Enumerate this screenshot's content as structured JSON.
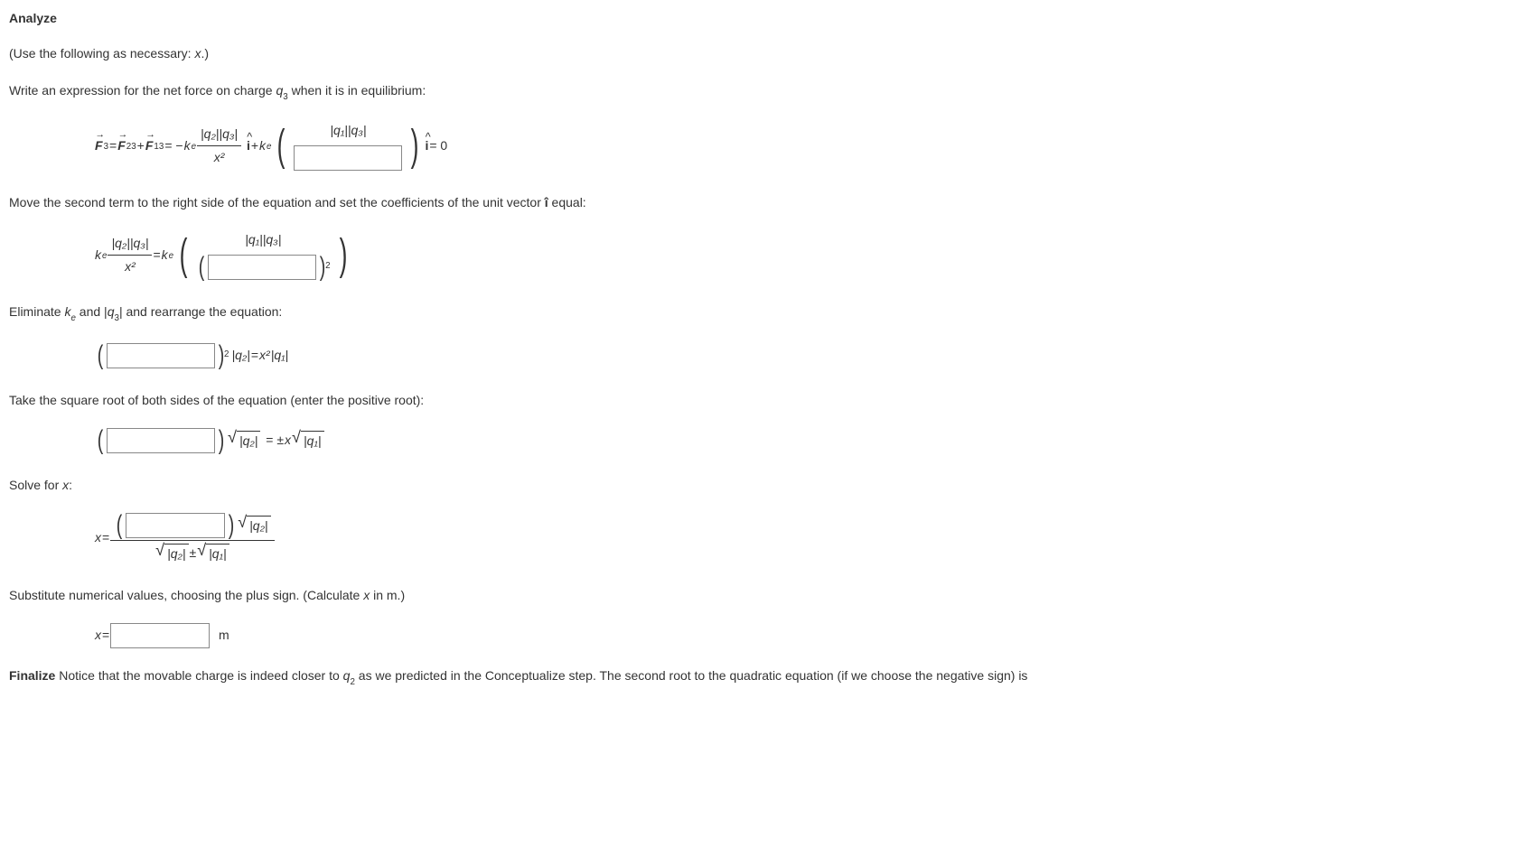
{
  "heading": "Analyze",
  "line1_pre": "(Use the following as necessary: ",
  "line1_var": "x",
  "line1_post": ".)",
  "line2_pre": "Write an expression for the net force on charge ",
  "line2_q": "q",
  "line2_sub": "3",
  "line2_post": " when it is in equilibrium:",
  "eq1": {
    "F": "F",
    "sub3": "3",
    "eq": " = ",
    "sub23": "23",
    "plus": " + ",
    "sub13": "13",
    "neg_ke": " = −",
    "k": "k",
    "e": "e",
    "num1": "|q₂||q₃|",
    "den1": "x²",
    "ihat": "i",
    "plus_ke": " + ",
    "num2": "|q₁||q₃|",
    "eq_zero": " = 0"
  },
  "line3_pre": "Move the second term to the right side of the equation and set the coefficients of the unit vector ",
  "line3_ihat": "î",
  "line3_post": " equal:",
  "eq2": {
    "k": "k",
    "e": "e",
    "num1": "|q₂||q₃|",
    "den1": "x²",
    "eq": " = ",
    "num2": "|q₁||q₃|",
    "sq_exp": "2"
  },
  "line4_pre": "Eliminate ",
  "line4_ke_k": "k",
  "line4_ke_e": "e",
  "line4_mid": " and |",
  "line4_q": "q",
  "line4_sub3": "3",
  "line4_post": "| and rearrange the equation:",
  "eq3": {
    "exp2": "2",
    "q2": "|q₂|",
    "eq": " = ",
    "x2": "x²",
    "q1": "|q₁|"
  },
  "line5": "Take the square root of both sides of the equation (enter the positive root):",
  "eq4": {
    "sqrt_q2": "|q₂|",
    "eq": " = ±",
    "x": "x",
    "sqrt_q1": "|q₁|"
  },
  "line6_pre": "Solve for ",
  "line6_x": "x",
  "line6_post": ":",
  "eq5": {
    "x": "x",
    "eq": " = ",
    "sqrt_q2_top": "|q₂|",
    "sqrt_q2_bot": "|q₂|",
    "pm": " ± ",
    "sqrt_q1_bot": "|q₁|"
  },
  "line7_pre": "Substitute numerical values, choosing the plus sign. (Calculate ",
  "line7_x": "x",
  "line7_post": " in m.)",
  "eq6": {
    "x": "x",
    "eq": " = ",
    "unit": "m"
  },
  "finalize_label": "Finalize",
  "finalize_text_pre": " Notice that the movable charge is indeed closer to ",
  "finalize_q": "q",
  "finalize_sub": "2",
  "finalize_text_post": " as we predicted in the Conceptualize step. The second root to the quadratic equation (if we choose the negative sign) is"
}
